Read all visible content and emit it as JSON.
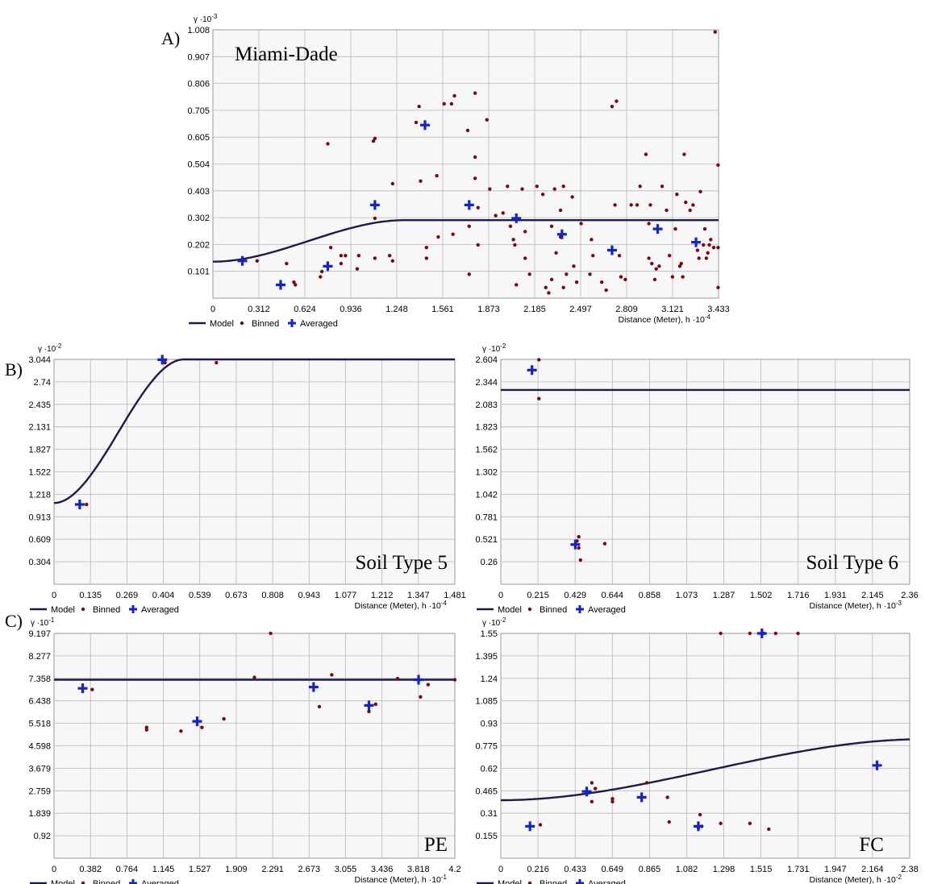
{
  "colors": {
    "model": "#1c1c4a",
    "binned": "#7a0a12",
    "averaged": "#1424c8",
    "grid": "#b8b8b8",
    "plot_bg": "#f7f7f7"
  },
  "legend": {
    "model": "Model",
    "binned": "Binned",
    "averaged": "Averaged"
  },
  "chart_data": [
    {
      "id": "A",
      "type": "scatter",
      "panel_label": "A)",
      "title": "Miami-Dade",
      "y_unit": "γ ·10",
      "y_exp": "-3",
      "x_label": "Distance (Meter), h ·10",
      "x_exp": "-4",
      "xlim": [
        0,
        3.433
      ],
      "ylim": [
        0,
        1.008
      ],
      "x_ticks": [
        "0",
        "0.312",
        "0.624",
        "0.936",
        "1.248",
        "1.561",
        "1.873",
        "2.185",
        "2.497",
        "2.809",
        "3.121",
        "3.433"
      ],
      "y_ticks": [
        "0.101",
        "0.202",
        "0.302",
        "0.403",
        "0.504",
        "0.605",
        "0.705",
        "0.806",
        "0.907",
        "1.008"
      ],
      "model": {
        "nugget": 0.137,
        "sill": 0.293,
        "range": 1.3
      },
      "binned": [
        [
          0.2,
          0.14
        ],
        [
          0.3,
          0.14
        ],
        [
          0.5,
          0.13
        ],
        [
          0.55,
          0.06
        ],
        [
          0.56,
          0.05
        ],
        [
          0.73,
          0.08
        ],
        [
          0.74,
          0.1
        ],
        [
          0.87,
          0.16
        ],
        [
          0.87,
          0.13
        ],
        [
          0.9,
          0.16
        ],
        [
          0.78,
          0.58
        ],
        [
          0.8,
          0.19
        ],
        [
          0.98,
          0.11
        ],
        [
          0.99,
          0.16
        ],
        [
          1.09,
          0.59
        ],
        [
          1.1,
          0.6
        ],
        [
          1.1,
          0.15
        ],
        [
          1.1,
          0.3
        ],
        [
          1.22,
          0.43
        ],
        [
          1.2,
          0.16
        ],
        [
          1.22,
          0.14
        ],
        [
          1.38,
          0.66
        ],
        [
          1.4,
          0.72
        ],
        [
          1.41,
          0.44
        ],
        [
          1.45,
          0.15
        ],
        [
          1.45,
          0.19
        ],
        [
          1.52,
          0.46
        ],
        [
          1.53,
          0.23
        ],
        [
          1.57,
          0.73
        ],
        [
          1.62,
          0.73
        ],
        [
          1.64,
          0.76
        ],
        [
          1.63,
          0.24
        ],
        [
          1.73,
          0.63
        ],
        [
          1.74,
          0.27
        ],
        [
          1.74,
          0.09
        ],
        [
          1.78,
          0.77
        ],
        [
          1.78,
          0.53
        ],
        [
          1.78,
          0.45
        ],
        [
          1.8,
          0.34
        ],
        [
          1.8,
          0.2
        ],
        [
          1.86,
          0.67
        ],
        [
          1.88,
          0.41
        ],
        [
          1.92,
          0.31
        ],
        [
          1.97,
          0.32
        ],
        [
          2.0,
          0.42
        ],
        [
          2.02,
          0.27
        ],
        [
          2.04,
          0.22
        ],
        [
          2.05,
          0.2
        ],
        [
          2.06,
          0.05
        ],
        [
          2.1,
          0.41
        ],
        [
          2.12,
          0.25
        ],
        [
          2.12,
          0.15
        ],
        [
          2.15,
          0.09
        ],
        [
          2.2,
          0.42
        ],
        [
          2.24,
          0.39
        ],
        [
          2.26,
          0.04
        ],
        [
          2.28,
          0.02
        ],
        [
          2.3,
          0.07
        ],
        [
          2.3,
          0.27
        ],
        [
          2.32,
          0.41
        ],
        [
          2.33,
          0.17
        ],
        [
          2.36,
          0.33
        ],
        [
          2.36,
          0.23
        ],
        [
          2.38,
          0.42
        ],
        [
          2.38,
          0.04
        ],
        [
          2.4,
          0.09
        ],
        [
          2.44,
          0.38
        ],
        [
          2.45,
          0.12
        ],
        [
          2.47,
          0.06
        ],
        [
          2.5,
          0.28
        ],
        [
          2.56,
          0.09
        ],
        [
          2.57,
          0.22
        ],
        [
          2.58,
          0.16
        ],
        [
          2.64,
          0.06
        ],
        [
          2.67,
          0.03
        ],
        [
          2.71,
          0.72
        ],
        [
          2.73,
          0.35
        ],
        [
          2.74,
          0.74
        ],
        [
          2.76,
          0.16
        ],
        [
          2.77,
          0.08
        ],
        [
          2.8,
          0.07
        ],
        [
          2.84,
          0.35
        ],
        [
          2.88,
          0.35
        ],
        [
          2.9,
          0.42
        ],
        [
          2.94,
          0.54
        ],
        [
          2.96,
          0.28
        ],
        [
          2.96,
          0.15
        ],
        [
          2.97,
          0.35
        ],
        [
          2.98,
          0.13
        ],
        [
          3.0,
          0.07
        ],
        [
          3.01,
          0.11
        ],
        [
          3.03,
          0.12
        ],
        [
          3.05,
          0.42
        ],
        [
          3.08,
          0.33
        ],
        [
          3.1,
          0.16
        ],
        [
          3.12,
          0.08
        ],
        [
          3.14,
          0.26
        ],
        [
          3.15,
          0.39
        ],
        [
          3.17,
          0.12
        ],
        [
          3.18,
          0.13
        ],
        [
          3.19,
          0.08
        ],
        [
          3.2,
          0.54
        ],
        [
          3.21,
          0.36
        ],
        [
          3.24,
          0.33
        ],
        [
          3.26,
          0.35
        ],
        [
          3.29,
          0.18
        ],
        [
          3.3,
          0.15
        ],
        [
          3.31,
          0.4
        ],
        [
          3.33,
          0.2
        ],
        [
          3.34,
          0.26
        ],
        [
          3.35,
          0.15
        ],
        [
          3.36,
          0.17
        ],
        [
          3.37,
          0.2
        ],
        [
          3.38,
          0.22
        ],
        [
          3.4,
          0.19
        ],
        [
          3.41,
          1.0
        ],
        [
          3.43,
          0.5
        ],
        [
          3.43,
          0.19
        ],
        [
          3.43,
          0.04
        ]
      ],
      "averaged": [
        [
          0.2,
          0.14
        ],
        [
          0.46,
          0.05
        ],
        [
          0.78,
          0.12
        ],
        [
          1.1,
          0.35
        ],
        [
          1.44,
          0.65
        ],
        [
          1.74,
          0.35
        ],
        [
          2.06,
          0.3
        ],
        [
          2.37,
          0.24
        ],
        [
          2.71,
          0.18
        ],
        [
          3.02,
          0.26
        ],
        [
          3.28,
          0.21
        ]
      ]
    },
    {
      "id": "B",
      "type": "scatter",
      "panel_label": "B)",
      "title": "Soil Type 5",
      "y_unit": "γ ·10",
      "y_exp": "-2",
      "x_label": "Distance (Meter), h ·10",
      "x_exp": "-4",
      "xlim": [
        0,
        1.481
      ],
      "ylim": [
        0,
        3.044
      ],
      "x_ticks": [
        "0",
        "0.135",
        "0.269",
        "0.404",
        "0.539",
        "0.673",
        "0.808",
        "0.943",
        "1.077",
        "1.212",
        "1.347",
        "1.481"
      ],
      "y_ticks": [
        "0.304",
        "0.609",
        "0.913",
        "1.218",
        "1.522",
        "1.827",
        "2.131",
        "2.435",
        "2.74",
        "3.044"
      ],
      "model": {
        "nugget": 1.1,
        "sill": 3.044,
        "range": 0.48
      },
      "binned": [
        [
          0.12,
          1.08
        ],
        [
          0.41,
          3.0
        ],
        [
          0.6,
          3.0
        ]
      ],
      "averaged": [
        [
          0.095,
          1.08
        ],
        [
          0.4,
          3.04
        ]
      ]
    },
    {
      "id": "B2",
      "type": "scatter",
      "panel_label": "",
      "title": "Soil Type 6",
      "y_unit": "γ ·10",
      "y_exp": "-2",
      "x_label": "Distance (Meter), h ·10",
      "x_exp": "-3",
      "xlim": [
        0,
        2.36
      ],
      "ylim": [
        0,
        2.604
      ],
      "x_ticks": [
        "0",
        "0.215",
        "0.429",
        "0.644",
        "0.858",
        "1.073",
        "1.287",
        "1.502",
        "1.716",
        "1.931",
        "2.145",
        "2.36"
      ],
      "y_ticks": [
        "0.26",
        "0.521",
        "0.781",
        "1.042",
        "1.302",
        "1.562",
        "1.823",
        "2.083",
        "2.344",
        "2.604"
      ],
      "model": {
        "flat": 2.25
      },
      "binned": [
        [
          0.22,
          2.6
        ],
        [
          0.22,
          2.15
        ],
        [
          0.44,
          0.5
        ],
        [
          0.45,
          0.55
        ],
        [
          0.45,
          0.42
        ],
        [
          0.46,
          0.28
        ],
        [
          0.6,
          0.47
        ]
      ],
      "averaged": [
        [
          0.18,
          2.48
        ],
        [
          0.43,
          0.46
        ]
      ]
    },
    {
      "id": "C",
      "type": "scatter",
      "panel_label": "C)",
      "title": "PE",
      "y_unit": "γ ·10",
      "y_exp": "-1",
      "x_label": "Distance (Meter), h ·10",
      "x_exp": "-1",
      "xlim": [
        0,
        4.2
      ],
      "ylim": [
        0,
        9.197
      ],
      "x_ticks": [
        "0",
        "0.382",
        "0.764",
        "1.145",
        "1.527",
        "1.909",
        "2.291",
        "2.673",
        "3.055",
        "3.436",
        "3.818",
        "4.2"
      ],
      "y_ticks": [
        "0.92",
        "1.839",
        "2.759",
        "3.679",
        "4.598",
        "5.518",
        "6.438",
        "7.358",
        "8.277",
        "9.197"
      ],
      "model": {
        "flat": 7.3
      },
      "binned": [
        [
          0.4,
          6.9
        ],
        [
          0.97,
          5.35
        ],
        [
          0.97,
          5.25
        ],
        [
          1.33,
          5.2
        ],
        [
          1.55,
          5.35
        ],
        [
          1.78,
          5.7
        ],
        [
          2.1,
          7.4
        ],
        [
          2.27,
          9.2
        ],
        [
          2.78,
          6.2
        ],
        [
          2.91,
          7.5
        ],
        [
          3.3,
          6.0
        ],
        [
          3.37,
          6.3
        ],
        [
          3.6,
          7.35
        ],
        [
          3.84,
          6.6
        ],
        [
          3.92,
          7.1
        ],
        [
          4.2,
          7.3
        ]
      ],
      "averaged": [
        [
          0.3,
          6.95
        ],
        [
          1.5,
          5.6
        ],
        [
          2.72,
          7.0
        ],
        [
          3.3,
          6.25
        ],
        [
          3.82,
          7.3
        ]
      ]
    },
    {
      "id": "C2",
      "type": "scatter",
      "panel_label": "",
      "title": "FC",
      "y_unit": "γ ·10",
      "y_exp": "-2",
      "x_label": "Distance (Meter), h ·10",
      "x_exp": "-2",
      "xlim": [
        0,
        2.38
      ],
      "ylim": [
        0,
        1.55
      ],
      "x_ticks": [
        "0",
        "0.216",
        "0.433",
        "0.649",
        "0.865",
        "1.082",
        "1.298",
        "1.515",
        "1.731",
        "1.947",
        "2.164",
        "2.38"
      ],
      "y_ticks": [
        "0.155",
        "0.31",
        "0.465",
        "0.62",
        "0.775",
        "0.93",
        "1.085",
        "1.24",
        "1.395",
        "1.55"
      ],
      "model": {
        "nugget": 0.4,
        "sill": 0.82,
        "range": 2.45
      },
      "binned": [
        [
          0.23,
          0.23
        ],
        [
          0.5,
          0.46
        ],
        [
          0.53,
          0.52
        ],
        [
          0.53,
          0.39
        ],
        [
          0.55,
          0.48
        ],
        [
          0.65,
          0.41
        ],
        [
          0.65,
          0.39
        ],
        [
          0.85,
          0.52
        ],
        [
          0.97,
          0.42
        ],
        [
          0.98,
          0.25
        ],
        [
          1.15,
          0.21
        ],
        [
          1.16,
          0.3
        ],
        [
          1.17,
          0.22
        ],
        [
          1.28,
          0.24
        ],
        [
          1.28,
          1.55
        ],
        [
          1.45,
          1.55
        ],
        [
          1.45,
          0.24
        ],
        [
          1.53,
          1.55
        ],
        [
          1.6,
          1.55
        ],
        [
          1.73,
          1.55
        ],
        [
          1.56,
          0.2
        ]
      ],
      "averaged": [
        [
          0.17,
          0.22
        ],
        [
          0.5,
          0.46
        ],
        [
          0.82,
          0.42
        ],
        [
          1.15,
          0.22
        ],
        [
          1.52,
          1.55
        ],
        [
          2.19,
          0.64
        ]
      ]
    }
  ]
}
